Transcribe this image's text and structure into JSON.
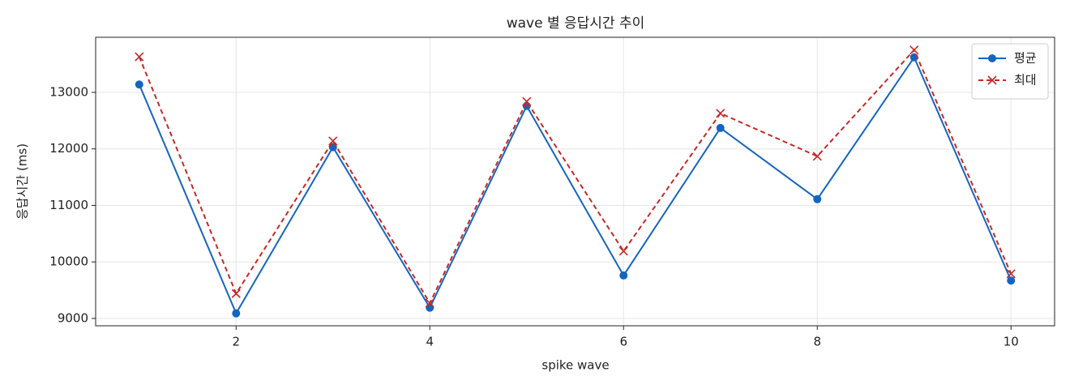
{
  "chart_data": {
    "type": "line",
    "title": "wave 별 응답시간 추이",
    "xlabel": "spike wave",
    "ylabel": "응답시간 (ms)",
    "x": [
      1,
      2,
      3,
      4,
      5,
      6,
      7,
      8,
      9,
      10
    ],
    "series": [
      {
        "name": "평균",
        "color": "#1565c0",
        "marker": "circle",
        "linestyle": "solid",
        "values": [
          13140,
          9090,
          12030,
          9190,
          12760,
          9760,
          12370,
          11110,
          13620,
          9670
        ]
      },
      {
        "name": "최대",
        "color": "#c62828",
        "marker": "x",
        "linestyle": "dashed",
        "values": [
          13630,
          9440,
          12140,
          9270,
          12840,
          10190,
          12630,
          11870,
          13750,
          9790
        ]
      }
    ],
    "xlim": [
      0.55,
      10.45
    ],
    "ylim": [
      8870,
      13975
    ],
    "xticks": [
      2,
      4,
      6,
      8,
      10
    ],
    "yticks": [
      9000,
      10000,
      11000,
      12000,
      13000
    ],
    "grid": true,
    "legend": "upper right"
  }
}
